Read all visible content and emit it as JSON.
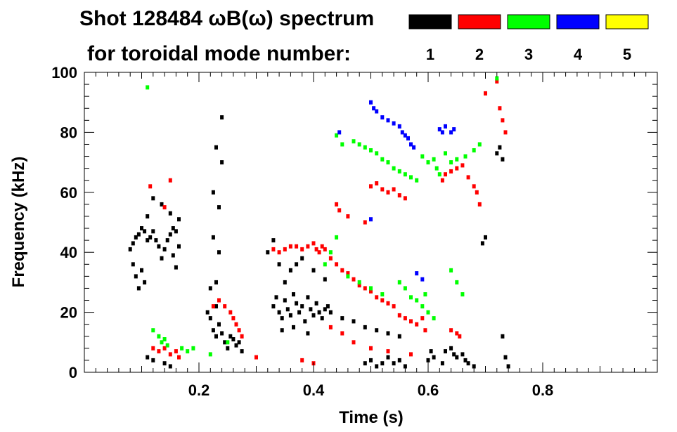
{
  "chart_data": {
    "type": "scatter",
    "title": "Shot 128484 ωB(ω) spectrum",
    "subtitle": "for toroidal mode number:",
    "xlabel": "Time (s)",
    "ylabel": "Frequency (kHz)",
    "xlim": [
      0.0,
      1.0
    ],
    "ylim": [
      0,
      100
    ],
    "xticks": [
      0.2,
      0.4,
      0.6,
      0.8
    ],
    "xtick_labels": [
      "0.2",
      "0.4",
      "0.6",
      "0.8"
    ],
    "yticks": [
      0,
      20,
      40,
      60,
      80,
      100
    ],
    "ytick_labels": [
      "0",
      "20",
      "40",
      "60",
      "80",
      "100"
    ],
    "grid": false,
    "legend_placement": "top-right",
    "series": [
      {
        "name": "1",
        "color": "#000000",
        "points": [
          [
            0.08,
            41
          ],
          [
            0.085,
            43
          ],
          [
            0.09,
            45
          ],
          [
            0.095,
            46
          ],
          [
            0.1,
            48
          ],
          [
            0.105,
            47
          ],
          [
            0.11,
            44
          ],
          [
            0.115,
            45
          ],
          [
            0.12,
            47
          ],
          [
            0.125,
            44
          ],
          [
            0.13,
            42
          ],
          [
            0.135,
            38
          ],
          [
            0.14,
            41
          ],
          [
            0.145,
            44
          ],
          [
            0.15,
            46
          ],
          [
            0.155,
            48
          ],
          [
            0.16,
            47
          ],
          [
            0.165,
            42
          ],
          [
            0.085,
            36
          ],
          [
            0.09,
            32
          ],
          [
            0.095,
            28
          ],
          [
            0.1,
            34
          ],
          [
            0.105,
            30
          ],
          [
            0.11,
            52
          ],
          [
            0.12,
            58
          ],
          [
            0.135,
            56
          ],
          [
            0.15,
            53
          ],
          [
            0.155,
            39
          ],
          [
            0.16,
            35
          ],
          [
            0.165,
            51
          ],
          [
            0.11,
            5
          ],
          [
            0.12,
            4
          ],
          [
            0.14,
            3
          ],
          [
            0.15,
            2
          ],
          [
            0.215,
            20
          ],
          [
            0.22,
            18
          ],
          [
            0.225,
            14
          ],
          [
            0.23,
            12
          ],
          [
            0.235,
            16
          ],
          [
            0.24,
            13
          ],
          [
            0.245,
            10
          ],
          [
            0.25,
            8
          ],
          [
            0.255,
            12
          ],
          [
            0.26,
            11
          ],
          [
            0.265,
            9
          ],
          [
            0.27,
            10
          ],
          [
            0.275,
            7
          ],
          [
            0.23,
            22
          ],
          [
            0.23,
            30
          ],
          [
            0.235,
            40
          ],
          [
            0.235,
            55
          ],
          [
            0.24,
            70
          ],
          [
            0.24,
            85
          ],
          [
            0.22,
            28
          ],
          [
            0.225,
            45
          ],
          [
            0.225,
            60
          ],
          [
            0.23,
            75
          ],
          [
            0.33,
            22
          ],
          [
            0.335,
            25
          ],
          [
            0.34,
            20
          ],
          [
            0.345,
            18
          ],
          [
            0.35,
            24
          ],
          [
            0.355,
            21
          ],
          [
            0.36,
            19
          ],
          [
            0.365,
            26
          ],
          [
            0.37,
            23
          ],
          [
            0.375,
            20
          ],
          [
            0.38,
            22
          ],
          [
            0.385,
            17
          ],
          [
            0.39,
            25
          ],
          [
            0.395,
            21
          ],
          [
            0.4,
            19
          ],
          [
            0.405,
            23
          ],
          [
            0.41,
            20
          ],
          [
            0.415,
            18
          ],
          [
            0.42,
            21
          ],
          [
            0.425,
            22
          ],
          [
            0.35,
            30
          ],
          [
            0.36,
            34
          ],
          [
            0.37,
            36
          ],
          [
            0.345,
            14
          ],
          [
            0.365,
            15
          ],
          [
            0.39,
            13
          ],
          [
            0.43,
            20
          ],
          [
            0.45,
            18
          ],
          [
            0.47,
            17
          ],
          [
            0.49,
            15
          ],
          [
            0.51,
            14
          ],
          [
            0.53,
            13
          ],
          [
            0.55,
            12
          ],
          [
            0.32,
            40
          ],
          [
            0.33,
            44
          ],
          [
            0.34,
            36
          ],
          [
            0.38,
            38
          ],
          [
            0.4,
            34
          ],
          [
            0.42,
            31
          ],
          [
            0.49,
            3
          ],
          [
            0.5,
            4
          ],
          [
            0.51,
            2
          ],
          [
            0.52,
            3
          ],
          [
            0.53,
            5
          ],
          [
            0.54,
            3
          ],
          [
            0.55,
            4
          ],
          [
            0.56,
            2
          ],
          [
            0.6,
            4
          ],
          [
            0.605,
            7
          ],
          [
            0.61,
            5
          ],
          [
            0.625,
            3
          ],
          [
            0.63,
            7
          ],
          [
            0.64,
            8
          ],
          [
            0.645,
            6
          ],
          [
            0.65,
            5
          ],
          [
            0.66,
            6
          ],
          [
            0.665,
            4
          ],
          [
            0.67,
            3
          ],
          [
            0.68,
            2
          ],
          [
            0.695,
            43
          ],
          [
            0.7,
            45
          ],
          [
            0.72,
            73
          ],
          [
            0.725,
            75
          ],
          [
            0.73,
            71
          ],
          [
            0.73,
            12
          ],
          [
            0.735,
            5
          ],
          [
            0.74,
            2
          ]
        ]
      },
      {
        "name": "2",
        "color": "#ff0000",
        "points": [
          [
            0.12,
            8
          ],
          [
            0.13,
            7
          ],
          [
            0.14,
            8
          ],
          [
            0.15,
            6
          ],
          [
            0.16,
            7
          ],
          [
            0.165,
            5
          ],
          [
            0.115,
            62
          ],
          [
            0.14,
            55
          ],
          [
            0.15,
            64
          ],
          [
            0.225,
            22
          ],
          [
            0.235,
            24
          ],
          [
            0.245,
            22
          ],
          [
            0.255,
            20
          ],
          [
            0.26,
            18
          ],
          [
            0.265,
            16
          ],
          [
            0.27,
            14
          ],
          [
            0.275,
            12
          ],
          [
            0.33,
            41
          ],
          [
            0.34,
            40
          ],
          [
            0.35,
            41
          ],
          [
            0.36,
            42
          ],
          [
            0.37,
            42
          ],
          [
            0.38,
            41
          ],
          [
            0.39,
            42
          ],
          [
            0.4,
            43
          ],
          [
            0.405,
            41
          ],
          [
            0.41,
            40
          ],
          [
            0.415,
            42
          ],
          [
            0.42,
            41
          ],
          [
            0.43,
            38
          ],
          [
            0.44,
            36
          ],
          [
            0.45,
            34
          ],
          [
            0.46,
            33
          ],
          [
            0.47,
            31
          ],
          [
            0.48,
            29
          ],
          [
            0.49,
            28
          ],
          [
            0.5,
            27
          ],
          [
            0.51,
            25
          ],
          [
            0.52,
            24
          ],
          [
            0.53,
            23
          ],
          [
            0.54,
            22
          ],
          [
            0.55,
            19
          ],
          [
            0.56,
            18
          ],
          [
            0.57,
            17
          ],
          [
            0.44,
            56
          ],
          [
            0.445,
            54
          ],
          [
            0.46,
            52
          ],
          [
            0.49,
            50
          ],
          [
            0.5,
            62
          ],
          [
            0.51,
            63
          ],
          [
            0.52,
            61
          ],
          [
            0.53,
            60
          ],
          [
            0.54,
            61
          ],
          [
            0.55,
            59
          ],
          [
            0.56,
            58
          ],
          [
            0.58,
            16
          ],
          [
            0.59,
            18
          ],
          [
            0.595,
            14
          ],
          [
            0.625,
            64
          ],
          [
            0.63,
            66
          ],
          [
            0.64,
            67
          ],
          [
            0.65,
            68
          ],
          [
            0.66,
            69
          ],
          [
            0.67,
            65
          ],
          [
            0.68,
            62
          ],
          [
            0.685,
            60
          ],
          [
            0.69,
            56
          ],
          [
            0.64,
            14
          ],
          [
            0.65,
            13
          ],
          [
            0.655,
            12
          ],
          [
            0.43,
            15
          ],
          [
            0.45,
            13
          ],
          [
            0.47,
            10
          ],
          [
            0.5,
            8
          ],
          [
            0.53,
            7
          ],
          [
            0.57,
            6
          ],
          [
            0.72,
            97
          ],
          [
            0.725,
            88
          ],
          [
            0.73,
            84
          ],
          [
            0.735,
            80
          ],
          [
            0.7,
            93
          ],
          [
            0.38,
            4
          ],
          [
            0.4,
            3
          ],
          [
            0.3,
            5
          ]
        ]
      },
      {
        "name": "3",
        "color": "#00ff00",
        "points": [
          [
            0.12,
            14
          ],
          [
            0.13,
            12
          ],
          [
            0.135,
            10
          ],
          [
            0.14,
            11
          ],
          [
            0.145,
            9
          ],
          [
            0.17,
            8
          ],
          [
            0.18,
            7
          ],
          [
            0.19,
            8
          ],
          [
            0.11,
            95
          ],
          [
            0.44,
            79
          ],
          [
            0.45,
            76
          ],
          [
            0.47,
            77
          ],
          [
            0.48,
            76
          ],
          [
            0.49,
            75
          ],
          [
            0.5,
            74
          ],
          [
            0.51,
            73
          ],
          [
            0.52,
            71
          ],
          [
            0.53,
            70
          ],
          [
            0.54,
            68
          ],
          [
            0.55,
            67
          ],
          [
            0.56,
            66
          ],
          [
            0.57,
            65
          ],
          [
            0.58,
            64
          ],
          [
            0.59,
            72
          ],
          [
            0.6,
            70
          ],
          [
            0.61,
            71
          ],
          [
            0.615,
            68
          ],
          [
            0.62,
            66
          ],
          [
            0.63,
            73
          ],
          [
            0.64,
            70
          ],
          [
            0.65,
            71
          ],
          [
            0.665,
            72
          ],
          [
            0.68,
            74
          ],
          [
            0.69,
            76
          ],
          [
            0.55,
            30
          ],
          [
            0.56,
            28
          ],
          [
            0.57,
            25
          ],
          [
            0.58,
            24
          ],
          [
            0.59,
            22
          ],
          [
            0.6,
            20
          ],
          [
            0.61,
            18
          ],
          [
            0.595,
            26
          ],
          [
            0.42,
            36
          ],
          [
            0.43,
            40
          ],
          [
            0.44,
            45
          ],
          [
            0.46,
            32
          ],
          [
            0.48,
            30
          ],
          [
            0.5,
            28
          ],
          [
            0.52,
            26
          ],
          [
            0.64,
            34
          ],
          [
            0.65,
            30
          ],
          [
            0.66,
            26
          ],
          [
            0.72,
            98
          ],
          [
            0.25,
            10
          ],
          [
            0.22,
            6
          ]
        ]
      },
      {
        "name": "4",
        "color": "#0000ff",
        "points": [
          [
            0.5,
            90
          ],
          [
            0.505,
            88
          ],
          [
            0.51,
            87
          ],
          [
            0.52,
            85
          ],
          [
            0.53,
            84
          ],
          [
            0.54,
            83
          ],
          [
            0.55,
            82
          ],
          [
            0.555,
            80
          ],
          [
            0.56,
            79
          ],
          [
            0.565,
            78
          ],
          [
            0.57,
            76
          ],
          [
            0.575,
            75
          ],
          [
            0.62,
            81
          ],
          [
            0.625,
            80
          ],
          [
            0.63,
            82
          ],
          [
            0.64,
            80
          ],
          [
            0.645,
            81
          ],
          [
            0.445,
            80
          ],
          [
            0.5,
            51
          ],
          [
            0.58,
            33
          ],
          [
            0.59,
            31
          ]
        ]
      },
      {
        "name": "5",
        "color": "#ffff00",
        "points": []
      }
    ]
  }
}
